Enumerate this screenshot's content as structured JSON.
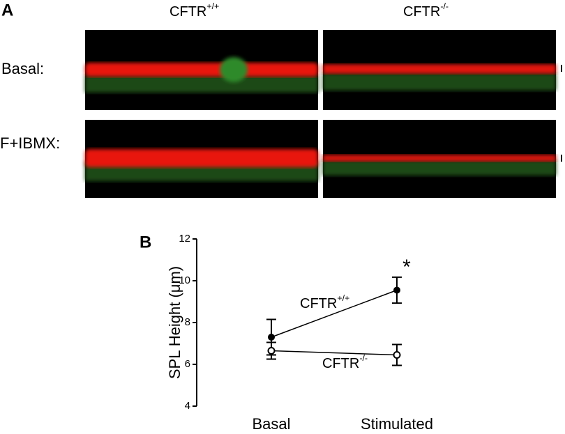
{
  "panel_a": {
    "label": "A",
    "columns": [
      {
        "base": "CFTR",
        "sup": "+/+"
      },
      {
        "base": "CFTR",
        "sup": "-/-"
      }
    ],
    "rows": [
      "Basal:",
      "F+IBMX:"
    ]
  },
  "chart_data": {
    "type": "line",
    "panel_label": "B",
    "ylabel": "SPL Height (μm)",
    "categories": [
      "Basal",
      "Stimulated"
    ],
    "series": [
      {
        "name": "CFTR",
        "name_sup": "+/+",
        "color": "#000000",
        "marker": "filled",
        "values": [
          7.3,
          9.55
        ],
        "errors": [
          0.85,
          0.62
        ]
      },
      {
        "name": "CFTR",
        "name_sup": "-/-",
        "color": "#000000",
        "marker": "open",
        "values": [
          6.65,
          6.45
        ],
        "errors": [
          0.4,
          0.5
        ]
      }
    ],
    "ylim": [
      4,
      12
    ],
    "yticks": [
      4,
      6,
      8,
      10,
      12
    ],
    "annotation": "*"
  }
}
